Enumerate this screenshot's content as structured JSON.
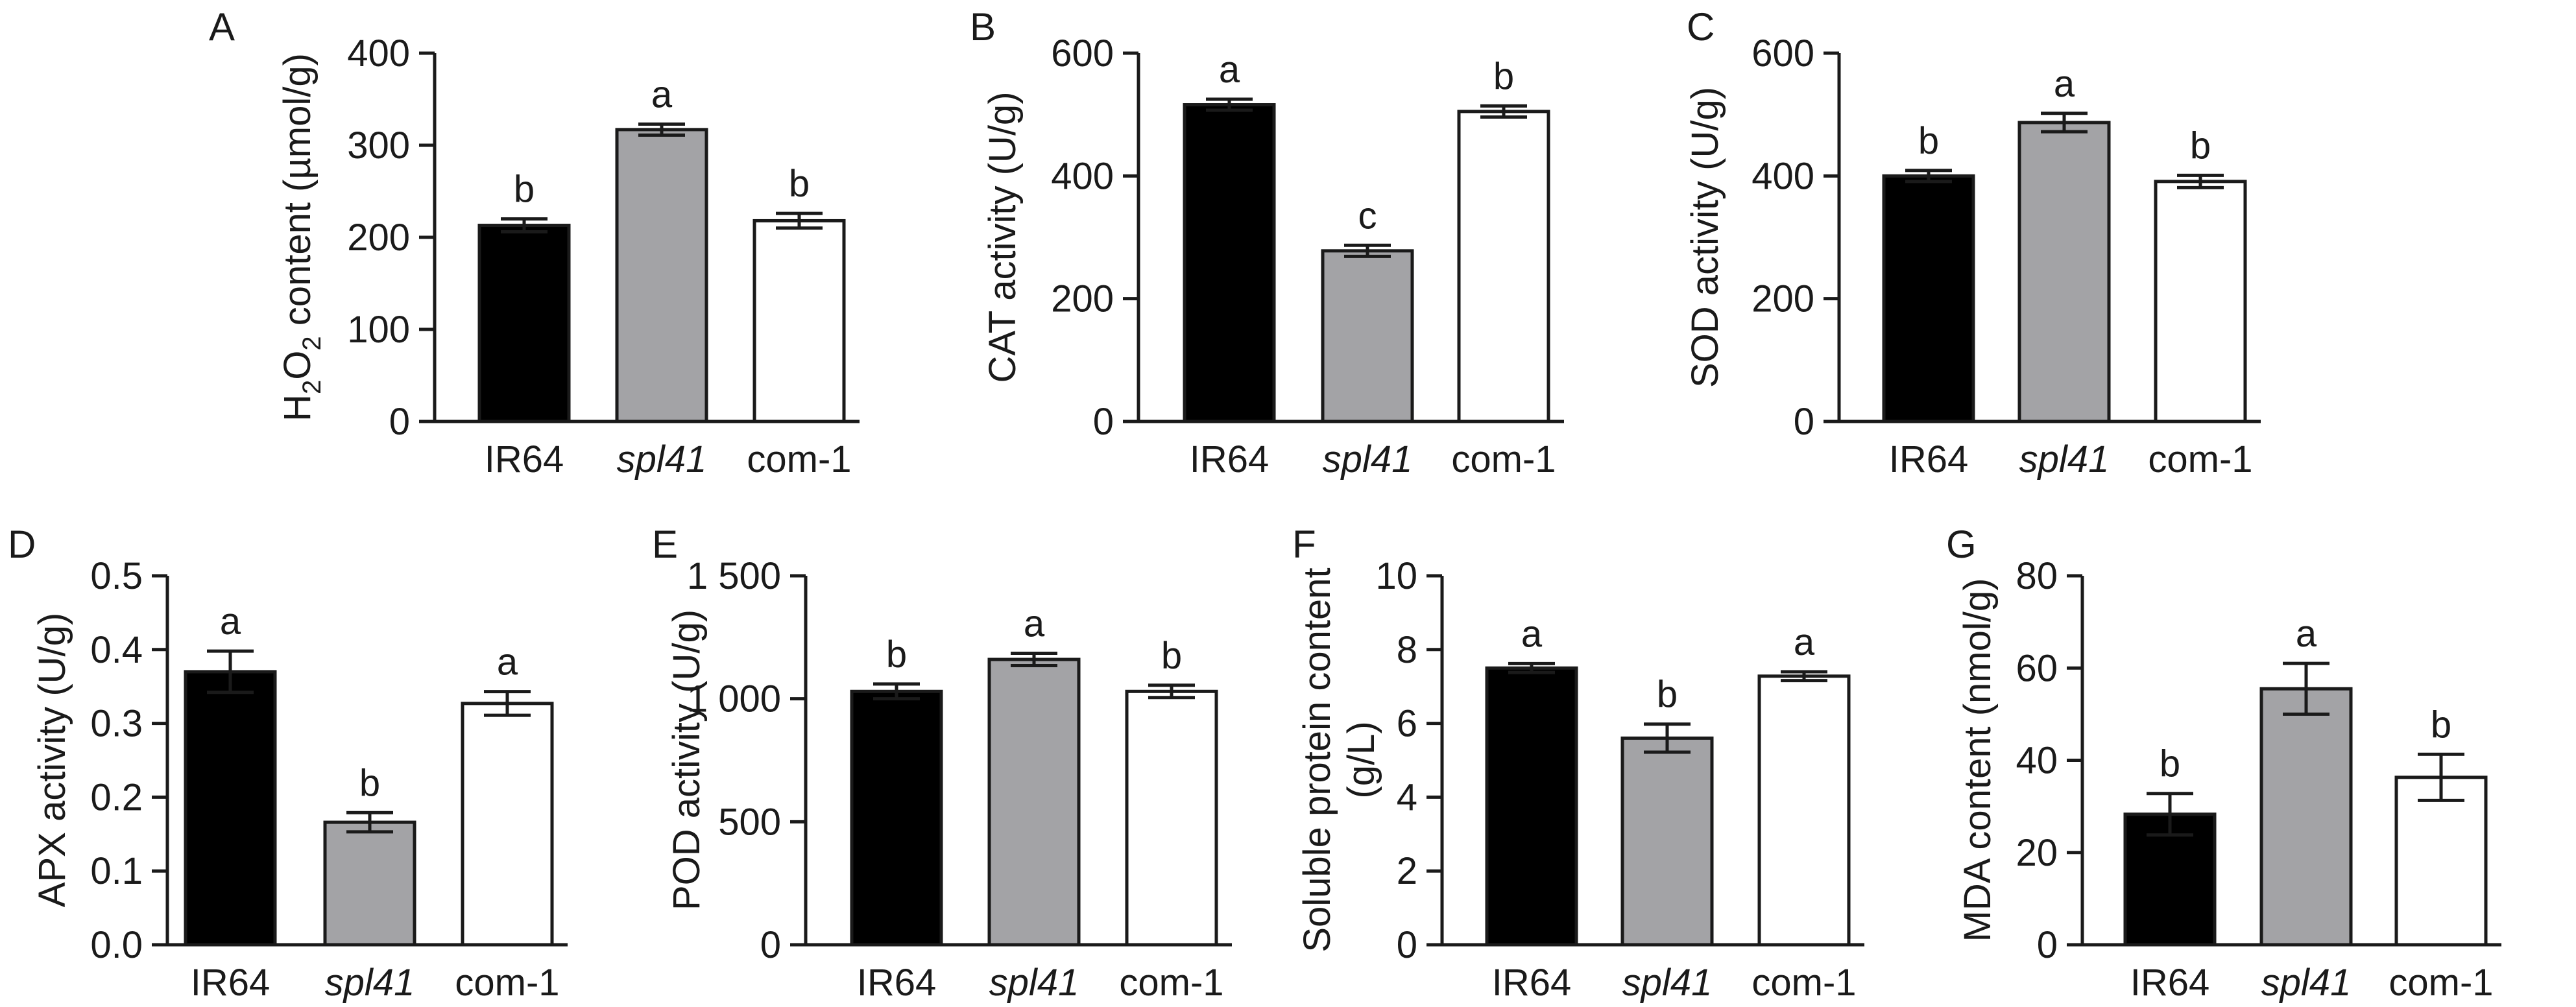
{
  "colors": {
    "IR64": "#000000",
    "spl41": "#a3a3a6",
    "com-1": "#ffffff",
    "stroke": "#1a1a1a"
  },
  "chart_data": [
    {
      "panel": "A",
      "type": "bar",
      "ylabel": "H2O2 content (µmol/g)",
      "ylabel_parts": [
        "H",
        "2",
        "O",
        "2",
        " content (µmol/g)"
      ],
      "categories": [
        "IR64",
        "spl41",
        "com-1"
      ],
      "values": [
        213,
        317,
        218
      ],
      "errors": [
        7,
        6,
        8
      ],
      "significance": [
        "b",
        "a",
        "b"
      ],
      "ylim": [
        0,
        400
      ],
      "yticks": [
        0,
        100,
        200,
        300,
        400
      ],
      "ytick_labels": [
        "0",
        "100",
        "200",
        "300",
        "400"
      ]
    },
    {
      "panel": "B",
      "type": "bar",
      "ylabel": "CAT activity (U/g)",
      "categories": [
        "IR64",
        "spl41",
        "com-1"
      ],
      "values": [
        516,
        278,
        505
      ],
      "errors": [
        9,
        9,
        9
      ],
      "significance": [
        "a",
        "c",
        "b"
      ],
      "ylim": [
        0,
        600
      ],
      "yticks": [
        0,
        200,
        400,
        600
      ],
      "ytick_labels": [
        "0",
        "200",
        "400",
        "600"
      ]
    },
    {
      "panel": "C",
      "type": "bar",
      "ylabel": "SOD activity (U/g)",
      "categories": [
        "IR64",
        "spl41",
        "com-1"
      ],
      "values": [
        400,
        487,
        391
      ],
      "errors": [
        9,
        15,
        10
      ],
      "significance": [
        "b",
        "a",
        "b"
      ],
      "ylim": [
        0,
        600
      ],
      "yticks": [
        0,
        200,
        400,
        600
      ],
      "ytick_labels": [
        "0",
        "200",
        "400",
        "600"
      ]
    },
    {
      "panel": "D",
      "type": "bar",
      "ylabel": "APX activity (U/g)",
      "categories": [
        "IR64",
        "spl41",
        "com-1"
      ],
      "values": [
        0.37,
        0.166,
        0.327
      ],
      "errors": [
        0.028,
        0.013,
        0.016
      ],
      "significance": [
        "a",
        "b",
        "a"
      ],
      "ylim": [
        0,
        0.5
      ],
      "yticks": [
        0,
        0.1,
        0.2,
        0.3,
        0.4,
        0.5
      ],
      "ytick_labels": [
        "0.0",
        "0.1",
        "0.2",
        "0.3",
        "0.4",
        "0.5"
      ]
    },
    {
      "panel": "E",
      "type": "bar",
      "ylabel": "POD activity (U/g)",
      "categories": [
        "IR64",
        "spl41",
        "com-1"
      ],
      "values": [
        1030,
        1160,
        1030
      ],
      "errors": [
        30,
        25,
        25
      ],
      "significance": [
        "b",
        "a",
        "b"
      ],
      "ylim": [
        0,
        1500
      ],
      "yticks": [
        0,
        500,
        1000,
        1500
      ],
      "ytick_labels": [
        "0",
        "500",
        "1 000",
        "1 500"
      ]
    },
    {
      "panel": "F",
      "type": "bar",
      "ylabel": "Soluble protein content (g/L)",
      "ylabel_lines": [
        "Soluble protein content",
        "(g/L)"
      ],
      "categories": [
        "IR64",
        "spl41",
        "com-1"
      ],
      "values": [
        7.5,
        5.6,
        7.28
      ],
      "errors": [
        0.12,
        0.38,
        0.12
      ],
      "significance": [
        "a",
        "b",
        "a"
      ],
      "ylim": [
        0,
        10
      ],
      "yticks": [
        0,
        2,
        4,
        6,
        8,
        10
      ],
      "ytick_labels": [
        "0",
        "2",
        "4",
        "6",
        "8",
        "10"
      ]
    },
    {
      "panel": "G",
      "type": "bar",
      "ylabel": "MDA content (nmol/g)",
      "categories": [
        "IR64",
        "spl41",
        "com-1"
      ],
      "values": [
        28.3,
        55.5,
        36.3
      ],
      "errors": [
        4.5,
        5.5,
        5.0
      ],
      "significance": [
        "b",
        "a",
        "b"
      ],
      "ylim": [
        0,
        80
      ],
      "yticks": [
        0,
        20,
        40,
        60,
        80
      ],
      "ytick_labels": [
        "0",
        "20",
        "40",
        "60",
        "80"
      ]
    }
  ]
}
